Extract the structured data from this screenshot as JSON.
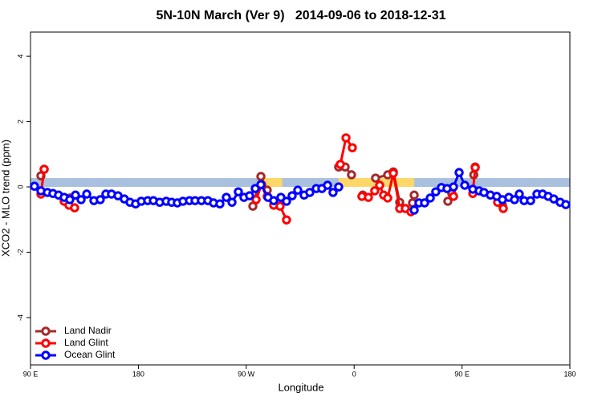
{
  "chart_data": {
    "type": "line",
    "title": "5N-10N March (Ver 9)   2014-09-06 to 2018-12-31",
    "x_label": "Longitude",
    "y_label": "XCO2 - MLO trend (ppm)",
    "xlim": [
      90,
      540
    ],
    "ylim": [
      -5.45,
      4.74
    ],
    "xticks": [
      {
        "value": 90,
        "label": "90 E"
      },
      180,
      {
        "value": 270,
        "label": "90 W"
      },
      {
        "value": 360,
        "label": "0"
      },
      {
        "value": 450,
        "label": "90 E"
      },
      {
        "value": 540,
        "label": "180"
      }
    ],
    "yticks": [
      4,
      2,
      0,
      -2,
      -4
    ],
    "legend": "bottom-left",
    "band": {
      "ymin": 0,
      "ymax": 0.27,
      "color": "#a9c1de"
    },
    "land_ranges": [
      [
        280,
        300
      ],
      [
        347,
        410
      ]
    ],
    "land_color": "#fdd868",
    "series": [
      {
        "name": "Land Nadir",
        "color": "#a52a2a",
        "x": [
          98.7,
          101.4,
          null,
          122.8,
          null,
          275.5,
          282.2,
          287.5,
          292.9,
          null,
          347.1,
          352.5,
          357.8,
          null,
          367.2,
          null,
          377.9,
          388.0,
          392.7,
          398.0,
          null,
          408.7,
          410.1,
          null,
          438.2,
          441.5,
          null,
          459.8,
          461.0,
          null,
          483.7
        ],
        "values": [
          0.34,
          0.54,
          null,
          -0.34,
          null,
          -0.59,
          0.32,
          -0.1,
          -0.42,
          null,
          0.61,
          0.61,
          0.37,
          null,
          -0.25,
          null,
          0.27,
          0.37,
          0.46,
          -0.47,
          null,
          -0.49,
          -0.25,
          null,
          -0.44,
          -0.2,
          null,
          0.37,
          0.61,
          null,
          -0.56
        ]
      },
      {
        "name": "Land Glint",
        "color": "#ff0000",
        "x": [
          98.7,
          101.4,
          null,
          118.1,
          122.1,
          126.8,
          null,
          278.2,
          282.8,
          287.5,
          292.9,
          298.2,
          303.6,
          null,
          348.5,
          353.2,
          358.5,
          null,
          366.5,
          371.9,
          377.2,
          381.3,
          384.6,
          388.0,
          392.7,
          398.0,
          402.7,
          407.4,
          null,
          442.9,
          null,
          459.0,
          461.0,
          null,
          479.7,
          484.4
        ],
        "values": [
          -0.22,
          0.54,
          null,
          -0.44,
          -0.56,
          -0.64,
          null,
          -0.39,
          0.07,
          -0.29,
          -0.56,
          -0.59,
          -1.01,
          null,
          0.69,
          1.5,
          1.2,
          null,
          -0.29,
          -0.32,
          -0.12,
          0.05,
          -0.25,
          -0.34,
          0.42,
          -0.66,
          -0.66,
          -0.76,
          null,
          -0.29,
          null,
          -0.2,
          0.59,
          null,
          -0.47,
          -0.66
        ]
      },
      {
        "name": "Ocean Glint",
        "color": "#0000ff",
        "x": [
          93.3,
          98.7,
          104.1,
          108.7,
          113.4,
          118.1,
          122.8,
          127.5,
          132.2,
          136.9,
          142.9,
          148.2,
          152.9,
          157.6,
          163.0,
          168.3,
          173.0,
          177.7,
          182.4,
          187.8,
          192.5,
          197.8,
          203.2,
          207.8,
          212.5,
          217.2,
          222.6,
          227.3,
          232.6,
          238.0,
          242.7,
          248.0,
          253.4,
          258.1,
          263.4,
          268.1,
          272.8,
          277.5,
          282.2,
          288.2,
          292.9,
          298.9,
          303.6,
          308.3,
          313.0,
          318.3,
          323.0,
          328.4,
          333.1,
          337.8,
          342.4,
          347.1,
          null,
          410.1,
          414.1,
          418.8,
          423.5,
          428.1,
          432.8,
          437.5,
          442.9,
          447.6,
          452.3,
          459.0,
          464.3,
          468.3,
          473.7,
          479.0,
          483.7,
          489.1,
          493.8,
          497.8,
          501.8,
          507.2,
          512.5,
          517.2,
          521.9,
          526.6,
          531.9,
          536.6
        ],
        "values": [
          0.02,
          -0.12,
          -0.17,
          -0.2,
          -0.25,
          -0.32,
          -0.39,
          -0.25,
          -0.39,
          -0.22,
          -0.42,
          -0.39,
          -0.22,
          -0.22,
          -0.27,
          -0.37,
          -0.47,
          -0.52,
          -0.44,
          -0.42,
          -0.42,
          -0.47,
          -0.44,
          -0.47,
          -0.49,
          -0.44,
          -0.42,
          -0.42,
          -0.42,
          -0.42,
          -0.49,
          -0.52,
          -0.32,
          -0.47,
          -0.15,
          -0.32,
          -0.27,
          -0.05,
          0.07,
          -0.32,
          -0.42,
          -0.32,
          -0.44,
          -0.27,
          -0.1,
          -0.25,
          -0.17,
          -0.05,
          -0.05,
          0.05,
          -0.17,
          0.0,
          null,
          -0.71,
          -0.49,
          -0.49,
          -0.34,
          -0.15,
          -0.02,
          -0.05,
          0.0,
          0.44,
          0.05,
          -0.07,
          -0.12,
          -0.17,
          -0.25,
          -0.29,
          -0.39,
          -0.32,
          -0.39,
          -0.22,
          -0.42,
          -0.42,
          -0.22,
          -0.22,
          -0.29,
          -0.37,
          -0.47,
          -0.54
        ]
      }
    ]
  }
}
